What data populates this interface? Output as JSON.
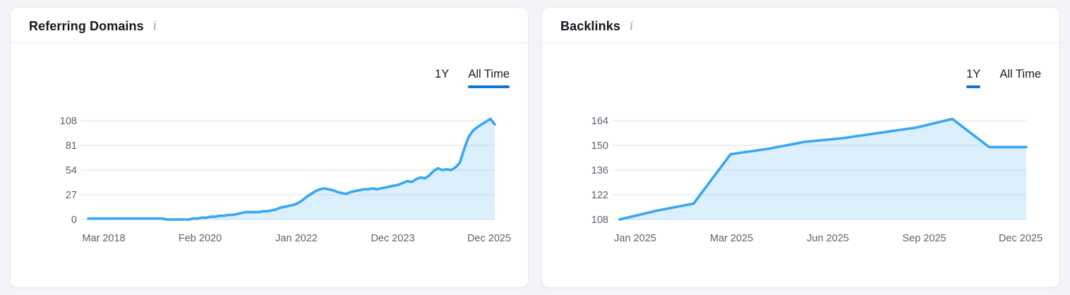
{
  "colors": {
    "page_bg": "#f3f4f8",
    "card_bg": "#ffffff",
    "card_border": "#e8e9ef",
    "divider": "#eaecf1",
    "title_text": "#16171f",
    "tab_text": "#1a1b26",
    "accent": "#0b76d6",
    "line": "#38a6f2",
    "fill": "#d9edfb",
    "grid": "#e6e8ee",
    "axis_text": "#5c6370",
    "info_icon": "#9ba1ac"
  },
  "icons": {
    "info": "i"
  },
  "cards": [
    {
      "title": "Referring Domains",
      "tabs": [
        {
          "label": "1Y",
          "active": false
        },
        {
          "label": "All Time",
          "active": true
        }
      ]
    },
    {
      "title": "Backlinks",
      "tabs": [
        {
          "label": "1Y",
          "active": true
        },
        {
          "label": "All Time",
          "active": false
        }
      ]
    }
  ],
  "chart_data": [
    {
      "type": "area",
      "title": "Referring Domains",
      "selected_range": "All Time",
      "x_interval": "monthly",
      "x_range": [
        "Mar 2018",
        "Dec 2025"
      ],
      "x_tick_labels": [
        "Mar 2018",
        "Feb 2020",
        "Jan 2022",
        "Dec 2023",
        "Dec 2025"
      ],
      "y_tick_labels": [
        0,
        27,
        54,
        81,
        108
      ],
      "ylim": [
        0,
        113
      ],
      "grid": "horizontal",
      "legend": "none",
      "values": [
        1,
        1,
        1,
        1,
        1,
        1,
        1,
        1,
        1,
        1,
        1,
        1,
        1,
        1,
        1,
        1,
        1,
        1,
        0,
        0,
        0,
        0,
        0,
        0,
        1,
        1,
        2,
        2,
        3,
        3,
        4,
        4,
        5,
        5,
        6,
        7,
        8,
        8,
        8,
        8,
        9,
        9,
        10,
        11,
        13,
        14,
        15,
        16,
        18,
        21,
        25,
        28,
        31,
        33,
        34,
        33,
        32,
        30,
        29,
        28,
        30,
        31,
        32,
        33,
        33,
        34,
        33,
        34,
        35,
        36,
        37,
        38,
        40,
        42,
        41,
        44,
        46,
        45,
        48,
        53,
        56,
        54,
        55,
        54,
        57,
        62,
        77,
        90,
        97,
        101,
        104,
        107,
        110,
        104
      ]
    },
    {
      "type": "area",
      "title": "Backlinks",
      "selected_range": "1Y",
      "x_interval": "monthly",
      "x_range": [
        "Jan 2025",
        "Dec 2025"
      ],
      "x_tick_labels": [
        "Jan 2025",
        "Mar 2025",
        "Jun 2025",
        "Sep 2025",
        "Dec 2025"
      ],
      "y_tick_labels": [
        108,
        122,
        136,
        150,
        164
      ],
      "ylim": [
        108,
        169
      ],
      "grid": "horizontal",
      "legend": "none",
      "x": [
        "Jan 2025",
        "Feb 2025",
        "Mar 2025",
        "Apr 2025",
        "May 2025",
        "Jun 2025",
        "Jul 2025",
        "Aug 2025",
        "Sep 2025",
        "Oct 2025",
        "Nov 2025",
        "Dec 2025"
      ],
      "values": [
        108,
        113,
        117,
        145,
        148,
        152,
        154,
        157,
        160,
        165,
        149,
        149
      ]
    }
  ]
}
